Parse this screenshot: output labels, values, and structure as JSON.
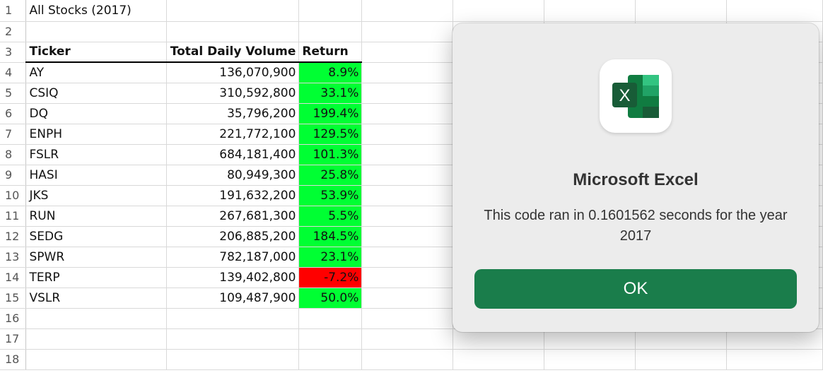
{
  "sheet": {
    "title": "All Stocks (2017)",
    "headers": {
      "ticker": "Ticker",
      "volume": "Total Daily Volume",
      "return": "Return"
    },
    "rows": [
      {
        "ticker": "AY",
        "volume": "136,070,900",
        "return": "8.9%",
        "status": "positive"
      },
      {
        "ticker": "CSIQ",
        "volume": "310,592,800",
        "return": "33.1%",
        "status": "positive"
      },
      {
        "ticker": "DQ",
        "volume": "35,796,200",
        "return": "199.4%",
        "status": "positive"
      },
      {
        "ticker": "ENPH",
        "volume": "221,772,100",
        "return": "129.5%",
        "status": "positive"
      },
      {
        "ticker": "FSLR",
        "volume": "684,181,400",
        "return": "101.3%",
        "status": "positive"
      },
      {
        "ticker": "HASI",
        "volume": "80,949,300",
        "return": "25.8%",
        "status": "positive"
      },
      {
        "ticker": "JKS",
        "volume": "191,632,200",
        "return": "53.9%",
        "status": "positive"
      },
      {
        "ticker": "RUN",
        "volume": "267,681,300",
        "return": "5.5%",
        "status": "positive"
      },
      {
        "ticker": "SEDG",
        "volume": "206,885,200",
        "return": "184.5%",
        "status": "positive"
      },
      {
        "ticker": "SPWR",
        "volume": "782,187,000",
        "return": "23.1%",
        "status": "positive"
      },
      {
        "ticker": "TERP",
        "volume": "139,402,800",
        "return": "-7.2%",
        "status": "negative"
      },
      {
        "ticker": "VSLR",
        "volume": "109,487,900",
        "return": "50.0%",
        "status": "positive"
      }
    ],
    "row_numbers": [
      "1",
      "2",
      "3",
      "4",
      "5",
      "6",
      "7",
      "8",
      "9",
      "10",
      "11",
      "12",
      "13",
      "14",
      "15",
      "16",
      "17",
      "18"
    ],
    "colors": {
      "positive": "#00ff33",
      "negative": "#ff0000"
    }
  },
  "dialog": {
    "app_icon": "excel-icon",
    "icon_letter": "X",
    "title": "Microsoft Excel",
    "message": "This code ran in 0.1601562 seconds for the year 2017",
    "ok_label": "OK",
    "button_color": "#1a7d4b"
  }
}
